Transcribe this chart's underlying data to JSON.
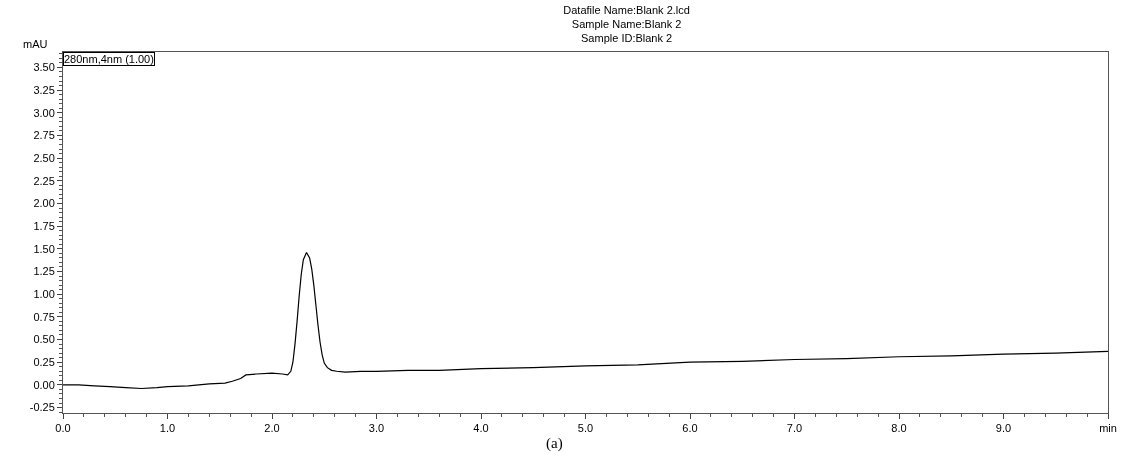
{
  "chart_data": {
    "type": "line",
    "title": "Datafile Name:Blank 2.lcd\nSample Name:Blank 2\nSample ID:Blank 2",
    "ylabel": "mAU",
    "annotations": [
      "280nm,4nm (1.00)",
      "(a)"
    ],
    "x": [
      0,
      0.15,
      0.3,
      0.45,
      0.6,
      0.75,
      0.9,
      1.0,
      1.2,
      1.4,
      1.55,
      1.62,
      1.7,
      1.75,
      1.85,
      2.0,
      2.1,
      2.15,
      2.18,
      2.2,
      2.22,
      2.24,
      2.26,
      2.28,
      2.3,
      2.33,
      2.36,
      2.38,
      2.4,
      2.42,
      2.44,
      2.46,
      2.48,
      2.5,
      2.53,
      2.57,
      2.62,
      2.7,
      2.85,
      3.0,
      3.3,
      3.6,
      4.0,
      4.5,
      5.0,
      5.5,
      6.0,
      6.5,
      7.0,
      7.5,
      8.0,
      8.5,
      9.0,
      9.5,
      10.0
    ],
    "series": [
      {
        "color": "#000000",
        "values": [
          0.0,
          0.0,
          -0.01,
          -0.02,
          -0.03,
          -0.04,
          -0.03,
          -0.02,
          -0.01,
          0.01,
          0.02,
          0.04,
          0.07,
          0.11,
          0.12,
          0.13,
          0.12,
          0.11,
          0.15,
          0.25,
          0.45,
          0.7,
          0.98,
          1.22,
          1.38,
          1.46,
          1.4,
          1.28,
          1.1,
          0.88,
          0.66,
          0.47,
          0.33,
          0.24,
          0.19,
          0.16,
          0.15,
          0.14,
          0.15,
          0.15,
          0.16,
          0.16,
          0.18,
          0.19,
          0.21,
          0.22,
          0.25,
          0.26,
          0.28,
          0.29,
          0.31,
          0.32,
          0.34,
          0.35,
          0.37
        ]
      }
    ],
    "xlim": [
      0,
      10
    ],
    "xticks": [
      {
        "value": 0,
        "label": "0.0"
      },
      {
        "value": 1,
        "label": "1.0"
      },
      {
        "value": 2,
        "label": "2.0"
      },
      {
        "value": 3,
        "label": "3.0"
      },
      {
        "value": 4,
        "label": "4.0"
      },
      {
        "value": 5,
        "label": "5.0"
      },
      {
        "value": 6,
        "label": "6.0"
      },
      {
        "value": 7,
        "label": "7.0"
      },
      {
        "value": 8,
        "label": "8.0"
      },
      {
        "value": 9,
        "label": "9.0"
      },
      {
        "value": 10,
        "label": "min"
      }
    ],
    "ylim": [
      -0.31,
      3.67
    ],
    "yticks": [
      {
        "value": -0.25,
        "label": "-0.25"
      },
      {
        "value": 0,
        "label": "0.00"
      },
      {
        "value": 0.25,
        "label": "0.25"
      },
      {
        "value": 0.5,
        "label": "0.50"
      },
      {
        "value": 0.75,
        "label": "0.75"
      },
      {
        "value": 1.0,
        "label": "1.00"
      },
      {
        "value": 1.25,
        "label": "1.25"
      },
      {
        "value": 1.5,
        "label": "1.50"
      },
      {
        "value": 1.75,
        "label": "1.75"
      },
      {
        "value": 2.0,
        "label": "2.00"
      },
      {
        "value": 2.25,
        "label": "2.25"
      },
      {
        "value": 2.5,
        "label": "2.50"
      },
      {
        "value": 2.75,
        "label": "2.75"
      },
      {
        "value": 3.0,
        "label": "3.00"
      },
      {
        "value": 3.25,
        "label": "3.25"
      },
      {
        "value": 3.5,
        "label": "3.50"
      }
    ],
    "grid": false,
    "legend": false,
    "marker": "none",
    "line_style": "solid"
  }
}
